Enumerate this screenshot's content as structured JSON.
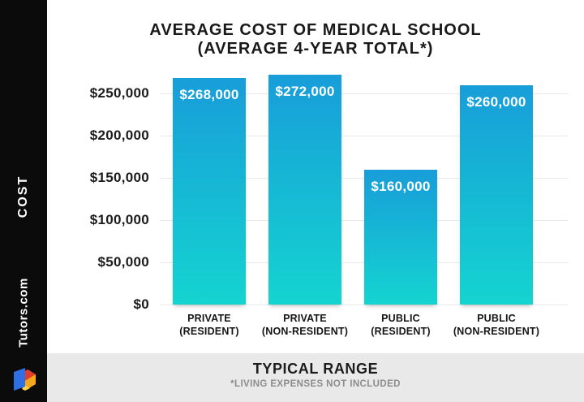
{
  "sidebar": {
    "category_label": "COST",
    "brand": "Tutors.com"
  },
  "chart_data": {
    "type": "bar",
    "title_line1": "AVERAGE COST OF MEDICAL SCHOOL",
    "title_line2": "(AVERAGE 4-YEAR TOTAL*)",
    "categories": [
      [
        "PRIVATE",
        "(RESIDENT)"
      ],
      [
        "PRIVATE",
        "(NON-RESIDENT)"
      ],
      [
        "PUBLIC",
        "(RESIDENT)"
      ],
      [
        "PUBLIC",
        "(NON-RESIDENT)"
      ]
    ],
    "values": [
      268000,
      272000,
      160000,
      260000
    ],
    "bar_labels": [
      "$268,000",
      "$272,000",
      "$160,000",
      "$260,000"
    ],
    "y_ticks": [
      "$250,000",
      "$200,000",
      "$150,000",
      "$100,000",
      "$50,000",
      "$0"
    ],
    "y_tick_values": [
      250000,
      200000,
      150000,
      100000,
      50000,
      0
    ],
    "ylim": [
      0,
      280000
    ],
    "grid": "on",
    "legend": "none",
    "xlabel": "",
    "ylabel": ""
  },
  "footer": {
    "title": "TYPICAL RANGE",
    "subtitle": "*LIVING EXPENSES NOT INCLUDED"
  },
  "colors": {
    "bar_gradient_top": "#189dd9",
    "bar_gradient_bottom": "#14d4d0",
    "sidebar_bg": "#0b0b0b",
    "footer_bg": "#e9e9e9",
    "logo_blue": "#2f6fe4",
    "logo_red": "#e23b30",
    "logo_orange": "#f3a71d",
    "logo_yellow": "#ffd24a"
  }
}
